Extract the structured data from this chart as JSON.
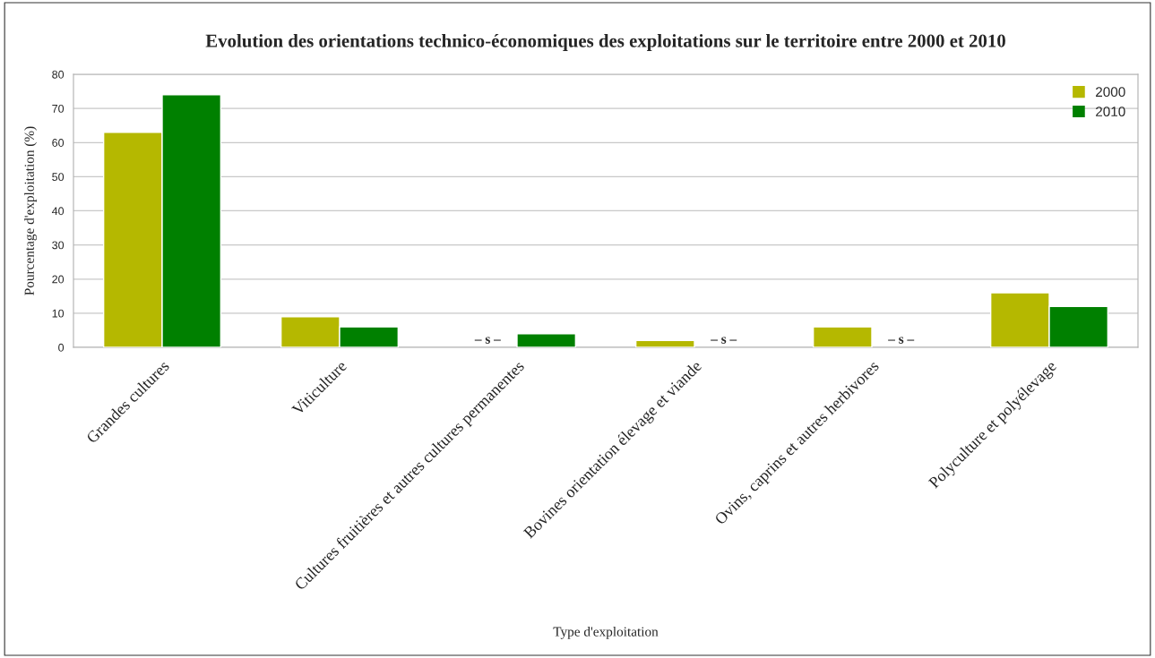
{
  "chart_data": {
    "type": "bar",
    "title": "Evolution des orientations technico-économiques des exploitations sur le territoire entre 2000 et 2010",
    "xlabel": "Type d'exploitation",
    "ylabel": "Pourcentage d'exploitation (%)",
    "categories": [
      "Grandes cultures",
      "Viticulture",
      "Cultures fruitières et autres cultures permanentes",
      "Bovines orientation élevage et viande",
      "Ovins, caprins et autres herbivores",
      "Polyculture et polyélevage"
    ],
    "series": [
      {
        "name": "2000",
        "color": "#b5b800",
        "values": [
          63,
          9,
          null,
          2,
          6,
          16
        ],
        "value_labels": [
          null,
          null,
          "– s –",
          null,
          null,
          null
        ]
      },
      {
        "name": "2010",
        "color": "#008000",
        "values": [
          74,
          6,
          4,
          null,
          null,
          12
        ],
        "value_labels": [
          null,
          null,
          null,
          "– s –",
          "– s –",
          null
        ]
      }
    ],
    "ylim": [
      0,
      80
    ],
    "yticks": [
      0,
      10,
      20,
      30,
      40,
      50,
      60,
      70,
      80
    ],
    "grid": "y",
    "legend": "top right"
  }
}
